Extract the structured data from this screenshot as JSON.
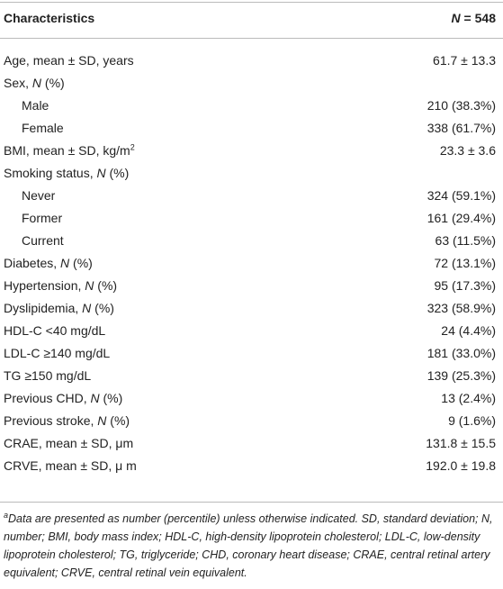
{
  "header": {
    "title": "Characteristics",
    "value_italic": "N",
    "value": " = 548"
  },
  "rows": [
    {
      "label": "Age, mean ± SD, years",
      "value": "61.7 ± 13.3"
    },
    {
      "label": "Sex, ",
      "label_italic": "N",
      "label_end": " (%)",
      "rows": [
        {
          "label": "Male",
          "value": "210 (38.3%)"
        },
        {
          "label": "Female",
          "value": "338 (61.7%)"
        }
      ]
    },
    {
      "label": "BMI, mean ± SD, kg/m",
      "label_sup": "2",
      "value": "23.3 ± 3.6"
    },
    {
      "label": "Smoking status, ",
      "label_italic": "N",
      "label_end": " (%)",
      "rows": [
        {
          "label": "Never",
          "value": "324 (59.1%)"
        },
        {
          "label": "Former",
          "value": "161 (29.4%)"
        },
        {
          "label": "Current",
          "value": "63 (11.5%)"
        }
      ]
    },
    {
      "label": "Diabetes, ",
      "label_italic": "N",
      "label_end": " (%)",
      "value": "72 (13.1%)"
    },
    {
      "label": "Hypertension, ",
      "label_italic": "N",
      "label_end": " (%)",
      "value": "95 (17.3%)"
    },
    {
      "label": "Dyslipidemia, ",
      "label_italic": "N",
      "label_end": " (%)",
      "value": "323 (58.9%)"
    },
    {
      "label": "HDL-C <40 mg/dL",
      "value": "24 (4.4%)"
    },
    {
      "label": "LDL-C ≥140 mg/dL",
      "value": "181 (33.0%)"
    },
    {
      "label": "TG ≥150 mg/dL",
      "value": "139 (25.3%)"
    },
    {
      "label": "Previous CHD, ",
      "label_italic": "N",
      "label_end": " (%)",
      "value": "13 (2.4%)"
    },
    {
      "label": "Previous stroke, ",
      "label_italic": "N",
      "label_end": " (%)",
      "value": "9 (1.6%)"
    },
    {
      "label": "CRAE, mean ± SD, μm",
      "value": "131.8 ± 15.5"
    },
    {
      "label": "CRVE, mean ± SD, μ m",
      "value": "192.0 ± 19.8"
    }
  ],
  "footnote": {
    "marker": "a",
    "text": "Data are presented as number (percentile) unless otherwise indicated. SD, standard deviation; N, number; BMI, body mass index; HDL-C, high-density lipoprotein cholesterol; LDL-C, low-density lipoprotein cholesterol; TG, triglyceride; CHD, coronary heart disease; CRAE, central retinal artery equivalent; CRVE, central retinal vein equivalent."
  }
}
